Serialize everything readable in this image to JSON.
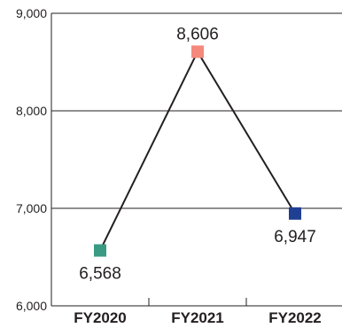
{
  "chart_data": {
    "type": "line",
    "title": "",
    "xlabel": "",
    "ylabel": "",
    "categories": [
      "FY2020",
      "FY2021",
      "FY2022"
    ],
    "values": [
      6568,
      8606,
      6947
    ],
    "value_labels": [
      "6,568",
      "8,606",
      "6,947"
    ],
    "point_colors": [
      "#3a9a84",
      "#f4897b",
      "#1f3f93"
    ],
    "line_color": "#231f20",
    "ylim": [
      6000,
      9000
    ],
    "yticks": [
      6000,
      7000,
      8000,
      9000
    ],
    "ytick_labels": [
      "6,000",
      "7,000",
      "8,000",
      "9,000"
    ],
    "label_positions": [
      "below",
      "above",
      "below"
    ],
    "grid": true,
    "legend": "none"
  }
}
